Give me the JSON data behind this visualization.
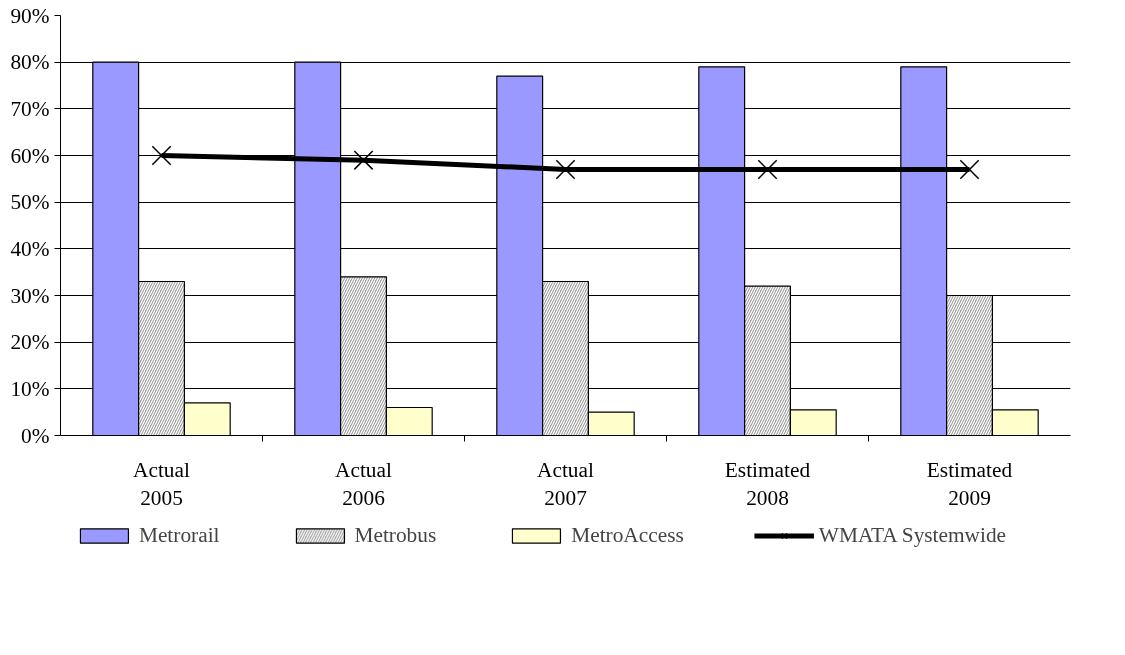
{
  "chart_data": {
    "type": "bar",
    "categories": [
      "Actual\n2005",
      "Actual\n2006",
      "Actual\n2007",
      "Estimated\n2008",
      "Estimated\n2009"
    ],
    "series": [
      {
        "name": "Metrorail",
        "color": "#9999ff",
        "values": [
          80,
          80,
          77,
          79,
          79
        ]
      },
      {
        "name": "Metrobus",
        "color": "#a0a0a0",
        "values": [
          33,
          34,
          33,
          32,
          30
        ]
      },
      {
        "name": "MetroAccess",
        "color": "#ffffcc",
        "values": [
          7,
          6,
          5,
          5.5,
          5.5
        ]
      },
      {
        "name": "WMATA Systemwide",
        "type": "line",
        "color": "#000000",
        "marker": "cross",
        "values": [
          60,
          59,
          57,
          57,
          57
        ]
      }
    ],
    "ylim": [
      0,
      90
    ],
    "yticks": [
      {
        "value": 0,
        "label": "0%"
      },
      {
        "value": 10,
        "label": "10%"
      },
      {
        "value": 20,
        "label": "20%"
      },
      {
        "value": 30,
        "label": "30%"
      },
      {
        "value": 40,
        "label": "40%"
      },
      {
        "value": 50,
        "label": "50%"
      },
      {
        "value": 60,
        "label": "60%"
      },
      {
        "value": 70,
        "label": "70%"
      },
      {
        "value": 80,
        "label": "80%"
      },
      {
        "value": 90,
        "label": "90%"
      }
    ],
    "grid": "y",
    "legend": "bottom"
  }
}
